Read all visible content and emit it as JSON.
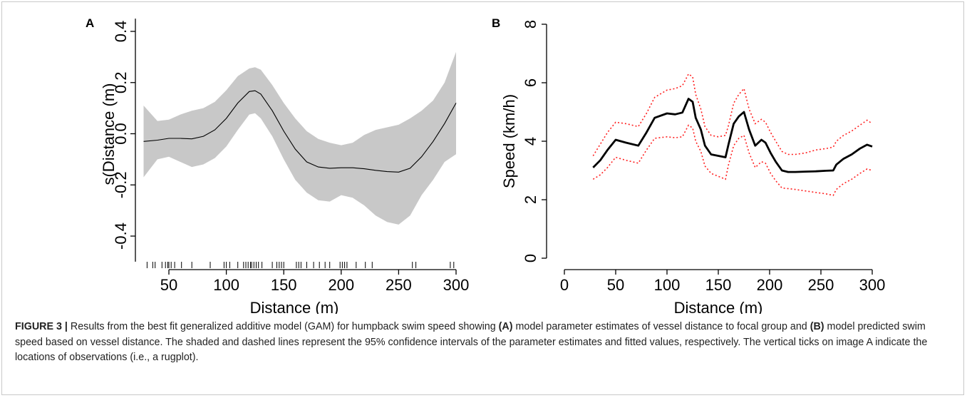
{
  "chart_data": [
    {
      "panel": "A",
      "type": "line",
      "xlabel": "Distance (m)",
      "ylabel": "s(Distance (m)",
      "xlim": [
        20,
        305
      ],
      "ylim": [
        -0.5,
        0.45
      ],
      "xticks": [
        50,
        100,
        150,
        200,
        250,
        300
      ],
      "yticks": [
        -0.4,
        -0.2,
        0.0,
        0.2,
        0.4
      ],
      "ytick_labels": [
        "-0.4",
        "-0.2",
        "0.0",
        "0.2",
        "0.4"
      ],
      "grid": false,
      "series": [
        {
          "role": "fit",
          "color": "#000000",
          "x": [
            28,
            40,
            50,
            60,
            70,
            80,
            90,
            100,
            110,
            120,
            125,
            130,
            140,
            150,
            160,
            170,
            180,
            190,
            200,
            210,
            220,
            230,
            240,
            250,
            260,
            270,
            280,
            290,
            300
          ],
          "y": [
            -0.03,
            -0.025,
            -0.018,
            -0.018,
            -0.02,
            -0.01,
            0.015,
            0.06,
            0.12,
            0.165,
            0.168,
            0.155,
            0.09,
            0.01,
            -0.06,
            -0.11,
            -0.13,
            -0.135,
            -0.133,
            -0.133,
            -0.137,
            -0.143,
            -0.148,
            -0.15,
            -0.135,
            -0.09,
            -0.03,
            0.04,
            0.12
          ]
        },
        {
          "role": "ci_band",
          "color": "#c8c8c8",
          "x": [
            28,
            40,
            50,
            60,
            70,
            80,
            90,
            100,
            110,
            120,
            125,
            130,
            140,
            150,
            160,
            170,
            180,
            190,
            200,
            210,
            220,
            230,
            240,
            250,
            260,
            270,
            280,
            290,
            300
          ],
          "upper": [
            0.11,
            0.05,
            0.055,
            0.075,
            0.09,
            0.1,
            0.125,
            0.17,
            0.225,
            0.255,
            0.26,
            0.25,
            0.19,
            0.12,
            0.06,
            0.01,
            -0.02,
            -0.035,
            -0.045,
            -0.035,
            -0.005,
            0.015,
            0.025,
            0.035,
            0.06,
            0.09,
            0.13,
            0.2,
            0.32
          ],
          "lower": [
            -0.17,
            -0.1,
            -0.09,
            -0.11,
            -0.13,
            -0.12,
            -0.095,
            -0.05,
            0.015,
            0.075,
            0.08,
            0.06,
            -0.01,
            -0.1,
            -0.18,
            -0.23,
            -0.26,
            -0.265,
            -0.24,
            -0.25,
            -0.28,
            -0.32,
            -0.345,
            -0.355,
            -0.32,
            -0.24,
            -0.18,
            -0.11,
            -0.08
          ]
        }
      ],
      "rug": [
        31,
        36,
        38,
        44,
        47,
        49,
        50,
        52,
        55,
        61,
        70,
        86,
        98,
        100,
        103,
        110,
        115,
        117,
        119,
        121,
        122,
        124,
        126,
        128,
        131,
        140,
        144,
        146,
        148,
        150,
        161,
        163,
        165,
        170,
        176,
        181,
        186,
        190,
        199,
        201,
        203,
        205,
        213,
        221,
        227,
        262,
        265,
        295,
        298
      ]
    },
    {
      "panel": "B",
      "type": "line",
      "xlabel": "Distance (m)",
      "ylabel": "Speed (km/h)",
      "xlim": [
        0,
        300
      ],
      "ylim": [
        0,
        8
      ],
      "xticks": [
        0,
        50,
        100,
        150,
        200,
        250,
        300
      ],
      "yticks": [
        0,
        2,
        4,
        6,
        8
      ],
      "grid": false,
      "series": [
        {
          "role": "fitted",
          "color": "#000000",
          "x": [
            28,
            35,
            42,
            50,
            60,
            72,
            80,
            88,
            100,
            108,
            115,
            121,
            125,
            128,
            133,
            137,
            143,
            150,
            157,
            160,
            165,
            170,
            175,
            180,
            186,
            192,
            196,
            201,
            206,
            212,
            218,
            225,
            235,
            245,
            255,
            262,
            265,
            272,
            280,
            288,
            295,
            300
          ],
          "y": [
            3.1,
            3.35,
            3.7,
            4.05,
            3.95,
            3.85,
            4.3,
            4.8,
            4.95,
            4.92,
            4.98,
            5.45,
            5.35,
            4.8,
            4.4,
            3.85,
            3.55,
            3.5,
            3.45,
            3.9,
            4.6,
            4.85,
            5.0,
            4.4,
            3.85,
            4.05,
            3.95,
            3.6,
            3.3,
            3.0,
            2.95,
            2.95,
            2.96,
            2.97,
            2.99,
            3.0,
            3.2,
            3.4,
            3.55,
            3.75,
            3.88,
            3.82
          ]
        },
        {
          "role": "ci_upper",
          "color": "#ff2020",
          "x": [
            28,
            35,
            42,
            50,
            60,
            72,
            80,
            88,
            100,
            108,
            115,
            121,
            125,
            128,
            133,
            137,
            143,
            150,
            157,
            160,
            165,
            170,
            175,
            180,
            186,
            192,
            196,
            201,
            206,
            212,
            218,
            225,
            235,
            245,
            255,
            262,
            265,
            272,
            280,
            288,
            295,
            300
          ],
          "y": [
            3.5,
            3.9,
            4.3,
            4.65,
            4.6,
            4.5,
            4.95,
            5.5,
            5.75,
            5.8,
            5.9,
            6.3,
            6.2,
            5.6,
            5.1,
            4.5,
            4.2,
            4.15,
            4.2,
            4.55,
            5.3,
            5.6,
            5.8,
            5.1,
            4.6,
            4.75,
            4.65,
            4.3,
            4.0,
            3.65,
            3.55,
            3.55,
            3.6,
            3.7,
            3.75,
            3.8,
            4.0,
            4.2,
            4.35,
            4.55,
            4.72,
            4.6
          ]
        },
        {
          "role": "ci_lower",
          "color": "#ff2020",
          "x": [
            28,
            35,
            42,
            50,
            60,
            72,
            80,
            88,
            100,
            108,
            115,
            121,
            125,
            128,
            133,
            137,
            143,
            150,
            157,
            160,
            165,
            170,
            175,
            180,
            186,
            192,
            196,
            201,
            206,
            212,
            218,
            225,
            235,
            245,
            255,
            262,
            265,
            272,
            280,
            288,
            295,
            300
          ],
          "y": [
            2.7,
            2.85,
            3.1,
            3.45,
            3.35,
            3.25,
            3.7,
            4.1,
            4.15,
            4.12,
            4.15,
            4.55,
            4.45,
            4.0,
            3.65,
            3.15,
            2.9,
            2.8,
            2.7,
            3.2,
            3.85,
            4.1,
            4.2,
            3.6,
            3.1,
            3.3,
            3.25,
            2.9,
            2.65,
            2.4,
            2.38,
            2.35,
            2.3,
            2.25,
            2.2,
            2.15,
            2.35,
            2.55,
            2.7,
            2.9,
            3.05,
            3.0
          ]
        }
      ]
    }
  ],
  "panels": {
    "a_letter": "A",
    "b_letter": "B"
  },
  "caption": {
    "label": "FIGURE 3 |",
    "text_1": " Results from the best fit generalized additive model (GAM) for humpback swim speed showing ",
    "bold_a": "(A)",
    "text_2": " model parameter estimates of vessel distance to focal group and ",
    "bold_b": "(B)",
    "text_3": " model predicted swim speed based on vessel distance. The shaded and dashed lines represent the 95% confidence intervals of the parameter estimates and fitted values, respectively. The vertical ticks on image A indicate the locations of observations (i.e., a rugplot)."
  },
  "colors": {
    "band": "#c8c8c8",
    "ci_dotted": "#ff2020",
    "line": "#000000",
    "frame_border": "#c9c9c9"
  }
}
